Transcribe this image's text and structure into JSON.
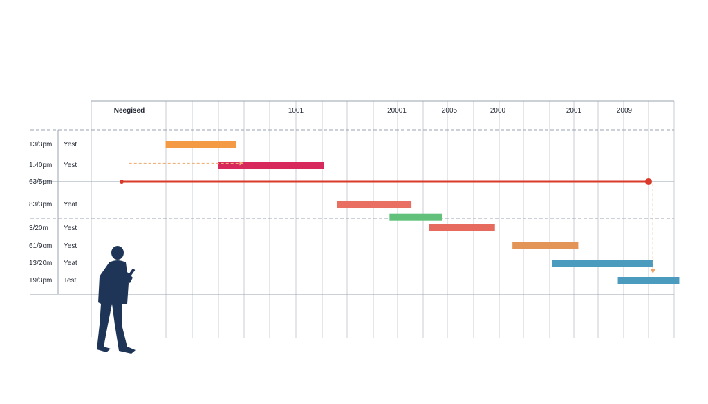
{
  "chart_data": {
    "type": "bar",
    "columns": [
      "Neegised",
      "1001",
      "20001",
      "2005",
      "2000",
      "2001",
      "2009"
    ],
    "rows": [
      {
        "time": "13/3pm",
        "status": "Yest"
      },
      {
        "time": "1.40pm",
        "status": "Yest"
      },
      {
        "time": "63/5pm",
        "status": ""
      },
      {
        "time": "83/3pm",
        "status": "Yeat"
      },
      {
        "time": "3/20m",
        "status": "Yest"
      },
      {
        "time": "61/9om",
        "status": "Yest"
      },
      {
        "time": "13/20m",
        "status": "Yeat"
      },
      {
        "time": "19/3pm",
        "status": "Test"
      }
    ],
    "bars": [
      {
        "row": 0,
        "start": 1.0,
        "end": 2.6,
        "color": "#f59a44"
      },
      {
        "row": 1,
        "start": 2.2,
        "end": 4.6,
        "color": "#d7295b"
      },
      {
        "row": 3,
        "start": 4.9,
        "end": 6.6,
        "color": "#ea6f63"
      },
      {
        "row": 3.55,
        "start": 6.1,
        "end": 7.3,
        "color": "#61c17a"
      },
      {
        "row": 4,
        "start": 7.0,
        "end": 8.5,
        "color": "#e66a5d"
      },
      {
        "row": 5,
        "start": 8.9,
        "end": 10.4,
        "color": "#e39558"
      },
      {
        "row": 6,
        "start": 9.8,
        "end": 12.1,
        "color": "#4b9bbf"
      },
      {
        "row": 7,
        "start": 11.3,
        "end": 12.7,
        "color": "#4b9bbf"
      }
    ],
    "milestone_line": {
      "row": 2,
      "start": 0.0,
      "end": 12.0,
      "color": "#d93a2a"
    },
    "dashed_arrows": [
      {
        "row": 0.85,
        "start": 0.2,
        "end": 3.0,
        "color": "#f0b27a"
      },
      {
        "vertical": true,
        "x": 12.1,
        "from_row": 2.1,
        "to_row": 7.1,
        "color": "#f0a36a"
      }
    ],
    "x_range": [
      0,
      13
    ],
    "grid": true
  }
}
